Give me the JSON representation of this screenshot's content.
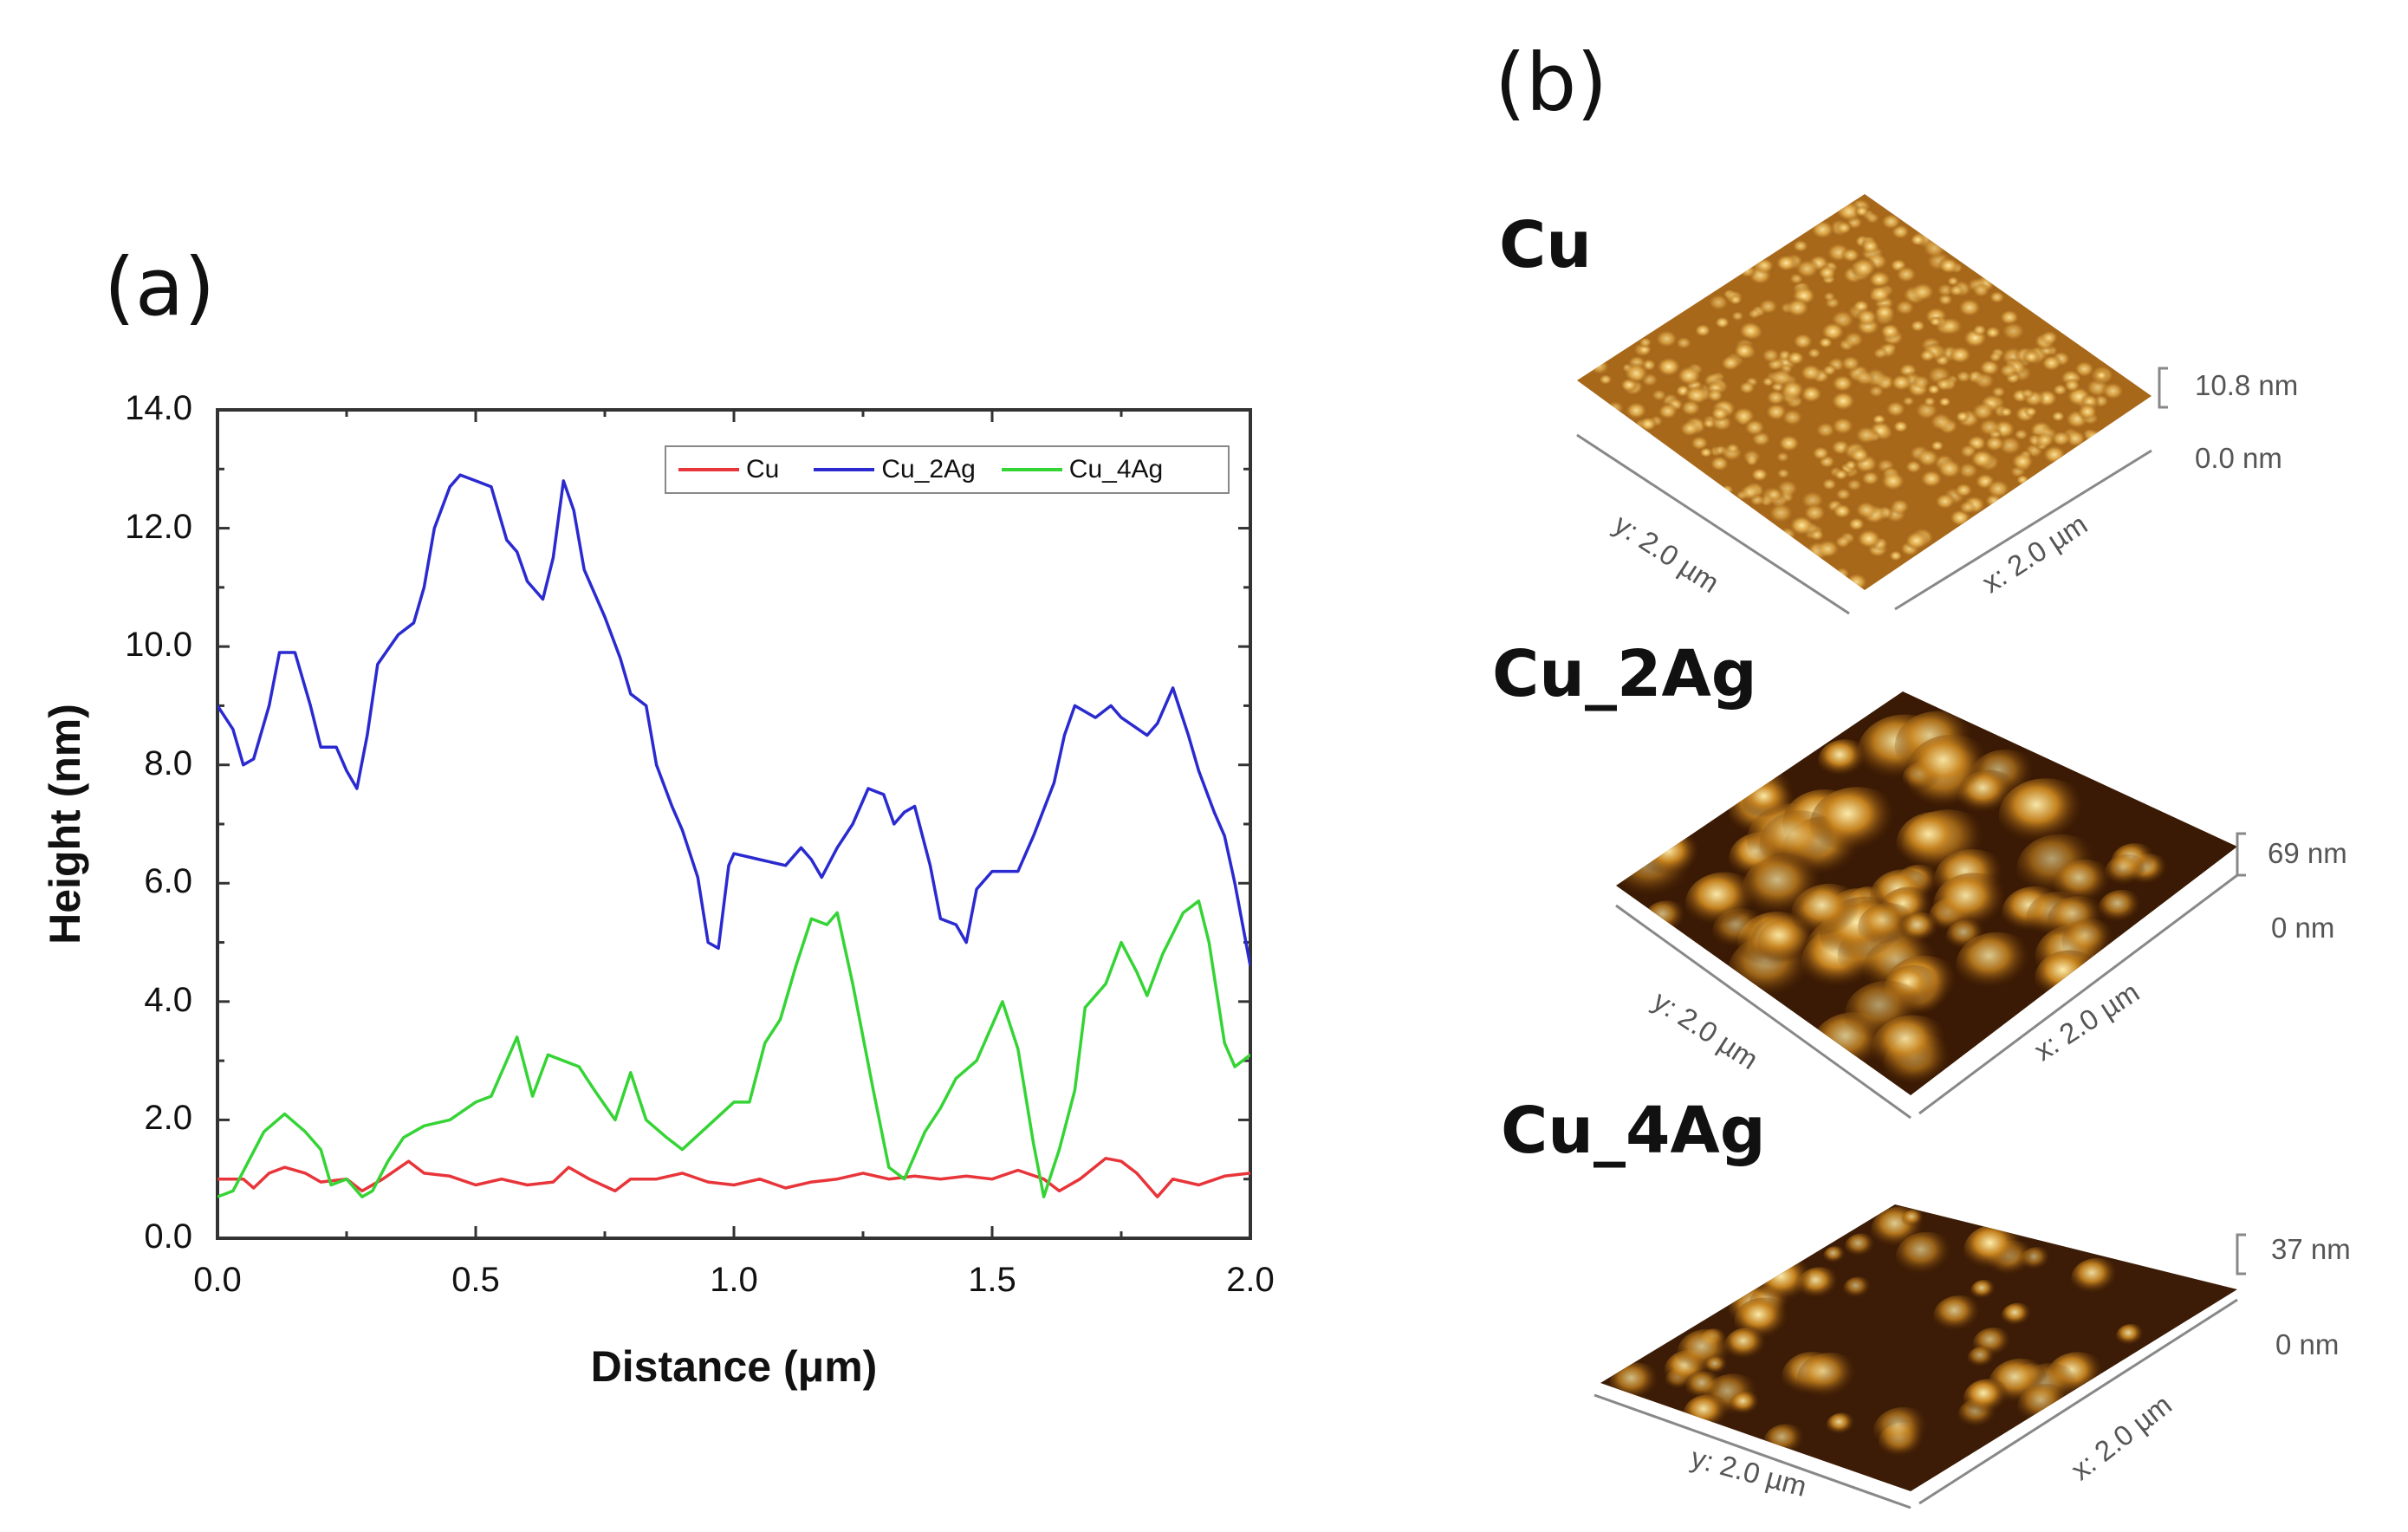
{
  "panel_a_label": "(a)",
  "panel_b_label": "(b)",
  "chart_data": {
    "type": "line",
    "title": "",
    "xlabel": "Distance (μm)",
    "ylabel": "Height (nm)",
    "xlim": [
      0,
      2.0
    ],
    "ylim": [
      0,
      14.0
    ],
    "xticks": [
      "0.0",
      "0.5",
      "1.0",
      "1.5",
      "2.0"
    ],
    "yticks": [
      "0.0",
      "2.0",
      "4.0",
      "6.0",
      "8.0",
      "10.0",
      "12.0",
      "14.0"
    ],
    "grid": false,
    "legend_position": "top-right",
    "series": [
      {
        "name": "Cu",
        "color": "#e8353a",
        "x": [
          0,
          0.05,
          0.07,
          0.1,
          0.13,
          0.17,
          0.2,
          0.25,
          0.28,
          0.32,
          0.37,
          0.4,
          0.45,
          0.5,
          0.55,
          0.6,
          0.65,
          0.68,
          0.72,
          0.77,
          0.8,
          0.85,
          0.9,
          0.95,
          1.0,
          1.05,
          1.1,
          1.15,
          1.2,
          1.25,
          1.3,
          1.35,
          1.4,
          1.45,
          1.5,
          1.55,
          1.6,
          1.63,
          1.67,
          1.72,
          1.75,
          1.78,
          1.82,
          1.85,
          1.9,
          1.95,
          2.0
        ],
        "y": [
          1.0,
          1.0,
          0.85,
          1.1,
          1.2,
          1.1,
          0.95,
          1.0,
          0.8,
          1.0,
          1.3,
          1.1,
          1.05,
          0.9,
          1.0,
          0.9,
          0.95,
          1.2,
          1.0,
          0.8,
          1.0,
          1.0,
          1.1,
          0.95,
          0.9,
          1.0,
          0.85,
          0.95,
          1.0,
          1.1,
          1.0,
          1.05,
          1.0,
          1.05,
          1.0,
          1.15,
          1.0,
          0.8,
          1.0,
          1.35,
          1.3,
          1.1,
          0.7,
          1.0,
          0.9,
          1.05,
          1.1
        ]
      },
      {
        "name": "Cu_2Ag",
        "color": "#2a2ad0",
        "x": [
          0,
          0.03,
          0.05,
          0.07,
          0.1,
          0.12,
          0.15,
          0.18,
          0.2,
          0.23,
          0.25,
          0.27,
          0.29,
          0.31,
          0.35,
          0.38,
          0.4,
          0.42,
          0.45,
          0.47,
          0.5,
          0.53,
          0.56,
          0.58,
          0.6,
          0.63,
          0.65,
          0.67,
          0.69,
          0.71,
          0.75,
          0.78,
          0.8,
          0.83,
          0.85,
          0.88,
          0.9,
          0.93,
          0.95,
          0.97,
          0.99,
          1.0,
          1.05,
          1.1,
          1.13,
          1.15,
          1.17,
          1.2,
          1.23,
          1.26,
          1.29,
          1.31,
          1.33,
          1.35,
          1.38,
          1.4,
          1.43,
          1.45,
          1.47,
          1.5,
          1.55,
          1.58,
          1.62,
          1.64,
          1.66,
          1.7,
          1.73,
          1.75,
          1.8,
          1.82,
          1.85,
          1.88,
          1.9,
          1.93,
          1.95,
          1.97,
          2.0
        ],
        "y": [
          9.0,
          8.6,
          8.0,
          8.1,
          9.0,
          9.9,
          9.9,
          9.0,
          8.3,
          8.3,
          7.9,
          7.6,
          8.5,
          9.7,
          10.2,
          10.4,
          11.0,
          12.0,
          12.7,
          12.9,
          12.8,
          12.7,
          11.8,
          11.6,
          11.1,
          10.8,
          11.5,
          12.8,
          12.3,
          11.3,
          10.5,
          9.8,
          9.2,
          9.0,
          8.0,
          7.3,
          6.9,
          6.1,
          5.0,
          4.9,
          6.3,
          6.5,
          6.4,
          6.3,
          6.6,
          6.4,
          6.1,
          6.6,
          7.0,
          7.6,
          7.5,
          7.0,
          7.2,
          7.3,
          6.3,
          5.4,
          5.3,
          5.0,
          5.9,
          6.2,
          6.2,
          6.8,
          7.7,
          8.5,
          9.0,
          8.8,
          9.0,
          8.8,
          8.5,
          8.7,
          9.3,
          8.5,
          7.9,
          7.2,
          6.8,
          6.0,
          4.6
        ]
      },
      {
        "name": "Cu_4Ag",
        "color": "#35d435",
        "x": [
          0,
          0.03,
          0.06,
          0.09,
          0.13,
          0.17,
          0.2,
          0.22,
          0.25,
          0.28,
          0.3,
          0.33,
          0.36,
          0.4,
          0.45,
          0.5,
          0.53,
          0.58,
          0.61,
          0.64,
          0.67,
          0.7,
          0.73,
          0.77,
          0.8,
          0.83,
          0.87,
          0.9,
          0.95,
          1.0,
          1.03,
          1.06,
          1.09,
          1.12,
          1.15,
          1.18,
          1.2,
          1.23,
          1.27,
          1.3,
          1.33,
          1.37,
          1.4,
          1.43,
          1.47,
          1.52,
          1.55,
          1.58,
          1.6,
          1.63,
          1.66,
          1.68,
          1.72,
          1.75,
          1.78,
          1.8,
          1.83,
          1.87,
          1.9,
          1.92,
          1.95,
          1.97,
          2.0
        ],
        "y": [
          0.7,
          0.8,
          1.3,
          1.8,
          2.1,
          1.8,
          1.5,
          0.9,
          1.0,
          0.7,
          0.8,
          1.3,
          1.7,
          1.9,
          2.0,
          2.3,
          2.4,
          3.4,
          2.4,
          3.1,
          3.0,
          2.9,
          2.5,
          2.0,
          2.8,
          2.0,
          1.7,
          1.5,
          1.9,
          2.3,
          2.3,
          3.3,
          3.7,
          4.6,
          5.4,
          5.3,
          5.5,
          4.3,
          2.5,
          1.2,
          1.0,
          1.8,
          2.2,
          2.7,
          3.0,
          4.0,
          3.2,
          1.6,
          0.7,
          1.5,
          2.5,
          3.9,
          4.3,
          5.0,
          4.5,
          4.1,
          4.8,
          5.5,
          5.7,
          5.0,
          3.3,
          2.9,
          3.1
        ]
      }
    ]
  },
  "afm_images": [
    {
      "sample": "Cu",
      "z_max": "10.8 nm",
      "z_min": "0.0 nm",
      "y_axis": "y: 2.0 µm",
      "x_axis": "x: 2.0 µm"
    },
    {
      "sample": "Cu_2Ag",
      "z_max": "69 nm",
      "z_min": "0 nm",
      "y_axis": "y: 2.0 µm",
      "x_axis": "x: 2.0 µm"
    },
    {
      "sample": "Cu_4Ag",
      "z_max": "37 nm",
      "z_min": "0 nm",
      "y_axis": "y: 2.0 µm",
      "x_axis": "x: 2.0 µm"
    }
  ]
}
